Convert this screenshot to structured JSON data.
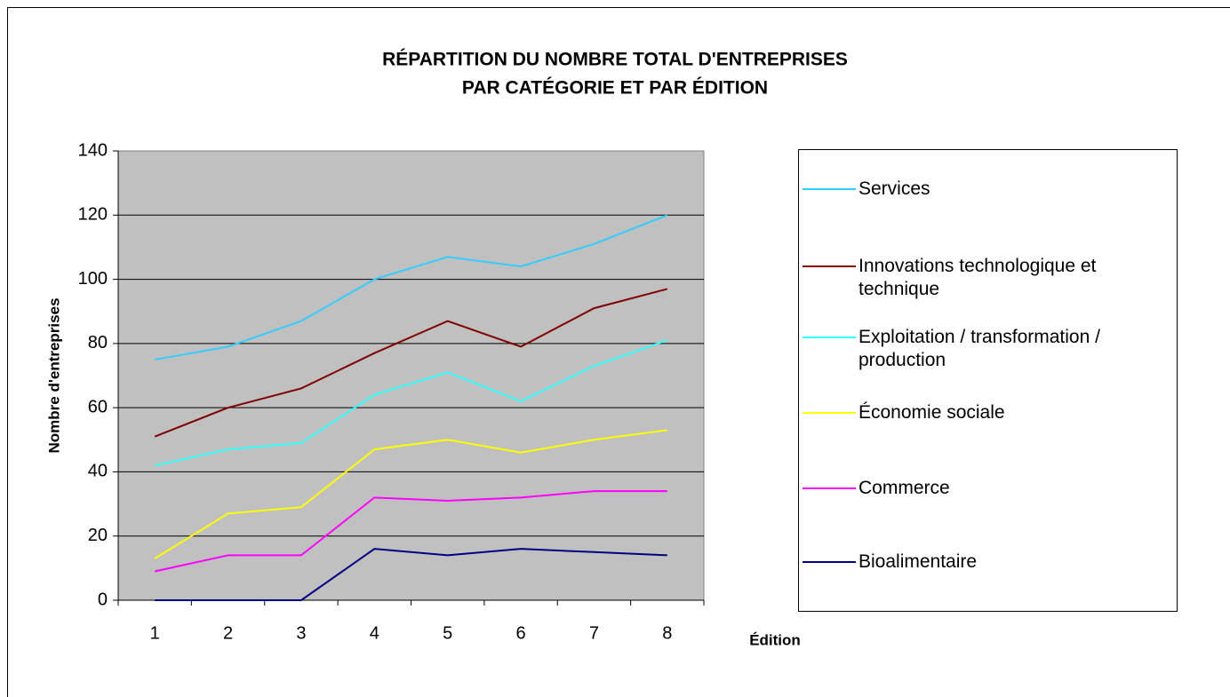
{
  "chart_data": {
    "type": "line",
    "title": [
      "RÉPARTITION DU NOMBRE TOTAL D'ENTREPRISES",
      "PAR CATÉGORIE ET PAR ÉDITION"
    ],
    "x_label": "Édition",
    "y_label": "Nombre d'entreprises",
    "categories": [
      "1",
      "2",
      "3",
      "4",
      "5",
      "6",
      "7",
      "8"
    ],
    "series": [
      {
        "name": "Services",
        "color": "#33ccff",
        "values": [
          75,
          79,
          87,
          100,
          107,
          104,
          111,
          120
        ]
      },
      {
        "name": "Innovations technologique et technique",
        "color": "#800000",
        "values": [
          51,
          60,
          66,
          77,
          87,
          79,
          91,
          97
        ]
      },
      {
        "name": "Exploitation / transformation / production",
        "color": "#33ffff",
        "values": [
          42,
          47,
          49,
          64,
          71,
          62,
          73,
          81
        ]
      },
      {
        "name": "Économie sociale",
        "color": "#ffff00",
        "values": [
          13,
          27,
          29,
          47,
          50,
          46,
          50,
          53
        ]
      },
      {
        "name": "Commerce",
        "color": "#ff00ff",
        "values": [
          9,
          14,
          14,
          32,
          31,
          32,
          34,
          34
        ]
      },
      {
        "name": "Bioalimentaire",
        "color": "#000080",
        "values": [
          0,
          0,
          0,
          16,
          14,
          16,
          15,
          14
        ]
      }
    ],
    "ylim": [
      0,
      140
    ],
    "yticks": [
      0,
      20,
      40,
      60,
      80,
      100,
      120,
      140
    ],
    "grid": true,
    "plot_background": "#c0c0c0",
    "legend": "right"
  }
}
